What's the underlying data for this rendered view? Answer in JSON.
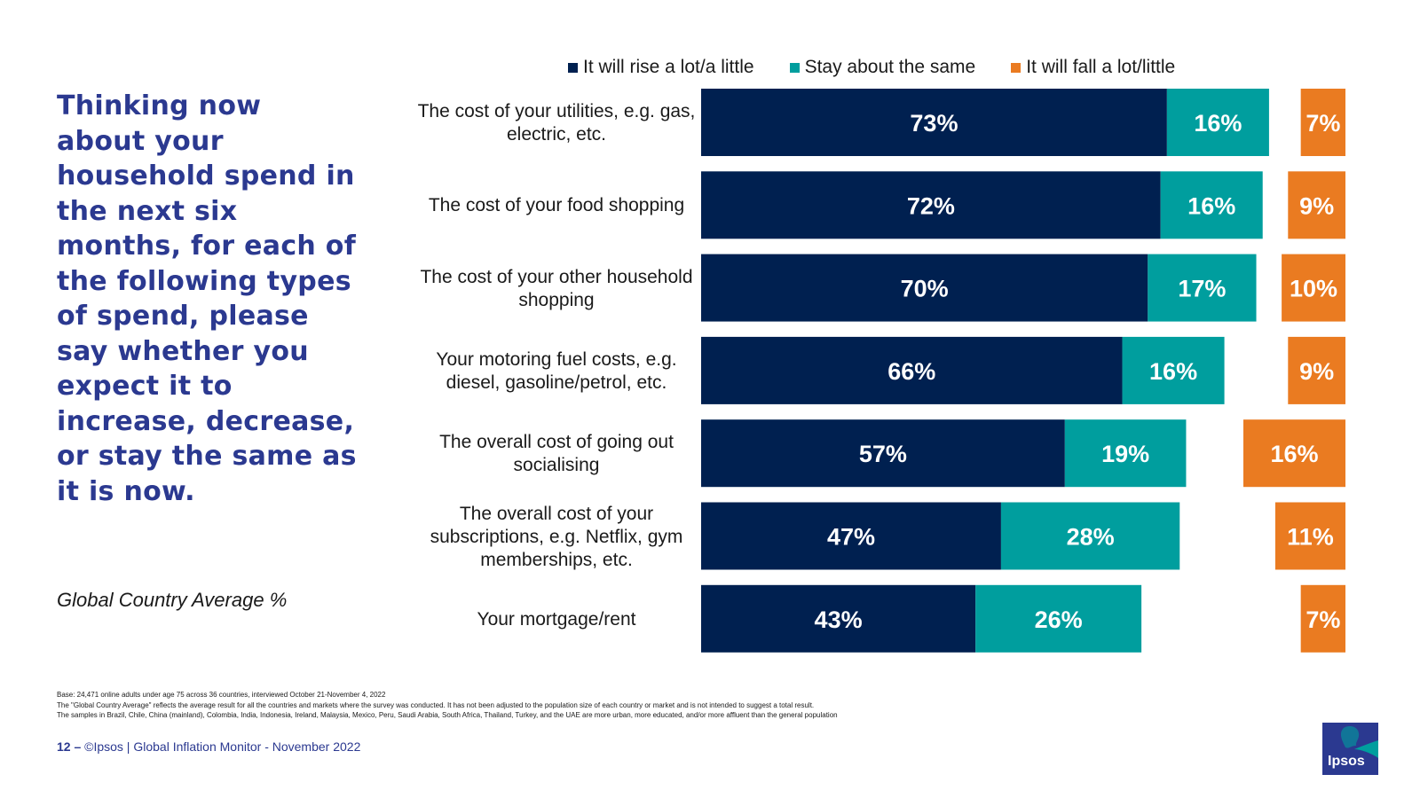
{
  "question": "Thinking now about your household spend in the next six months, for each of the following types of spend, please say whether you expect it to increase, decrease, or stay the same as it is now.",
  "subtitle": "Global Country Average %",
  "legend": [
    {
      "label": "It will rise a lot/a little",
      "color": "#002050"
    },
    {
      "label": "Stay about the same",
      "color": "#009e9e"
    },
    {
      "label": "It will fall a lot/little",
      "color": "#ea7b21"
    }
  ],
  "chart_data": {
    "type": "bar",
    "orientation": "horizontal",
    "stacked": true,
    "categories": [
      "The cost of your utilities, e.g. gas, electric, etc.",
      "The cost of your food shopping",
      "The cost of your other household shopping",
      "Your motoring fuel costs, e.g. diesel, gasoline/petrol, etc.",
      "The overall cost of going out socialising",
      "The overall cost of your subscriptions, e.g. Netflix, gym memberships, etc.",
      "Your mortgage/rent"
    ],
    "series": [
      {
        "name": "It will rise a lot/a little",
        "values": [
          73,
          72,
          70,
          66,
          57,
          47,
          43
        ],
        "color": "#002050"
      },
      {
        "name": "Stay about the same",
        "values": [
          16,
          16,
          17,
          16,
          19,
          28,
          26
        ],
        "color": "#009e9e"
      },
      {
        "name": "It will fall a lot/little",
        "values": [
          7,
          9,
          10,
          9,
          16,
          11,
          7
        ],
        "color": "#ea7b21"
      }
    ],
    "value_suffix": "%",
    "note": "fall values are right-aligned at the chart edge"
  },
  "notes": [
    "Base: 24,471 online adults under age 75 across 36 countries, interviewed October 21-November 4, 2022",
    "The \"Global Country Average\" reflects the average result for all the countries and markets where the survey was conducted. It has not been adjusted to the population size of each country or market and is not intended to suggest a total result.",
    "The samples in Brazil, Chile, China (mainland), Colombia, India, Indonesia, Ireland, Malaysia, Mexico, Peru, Saudi Arabia, South Africa, Thailand, Turkey, and the UAE are more urban, more educated, and/or more affluent than the general population"
  ],
  "footer": {
    "page": "12 –",
    "text": "©Ipsos | Global Inflation Monitor - November 2022"
  },
  "logo": {
    "text": "Ipsos",
    "color": "#2b3990",
    "accent": "#009e9e"
  }
}
